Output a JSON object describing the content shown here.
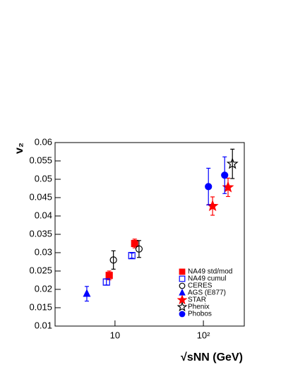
{
  "chart_data": {
    "type": "scatter",
    "x_label": "√sNN (GeV)",
    "y_label": "v₂",
    "xscale": "log",
    "xlim": [
      2.1,
      290
    ],
    "ylim": [
      0.01,
      0.06
    ],
    "xticks": [
      10,
      {
        "value": 100,
        "label": "10²"
      }
    ],
    "yticks": [
      0.01,
      0.015,
      0.02,
      0.025,
      0.03,
      0.035,
      0.04,
      0.045,
      0.05,
      0.055,
      0.06
    ],
    "series": [
      {
        "name": "NA49 std/mod",
        "color": "#ff0000",
        "marker": "square",
        "filled": true,
        "x": [
          8.6,
          16.7
        ],
        "values": [
          0.0238,
          0.0325
        ],
        "errors": [
          0.0012,
          0.0012
        ]
      },
      {
        "name": "NA49 cumul",
        "color": "#0000ff",
        "marker": "square",
        "filled": false,
        "x": [
          8.0,
          15.5
        ],
        "values": [
          0.022,
          0.0292
        ],
        "errors": [
          0.0008,
          0.0007
        ]
      },
      {
        "name": "CERES",
        "color": "#000000",
        "marker": "circle",
        "filled": false,
        "x": [
          9.6,
          18.7
        ],
        "values": [
          0.028,
          0.031
        ],
        "errors": [
          0.0025,
          0.0023
        ]
      },
      {
        "name": "AGS (E877)",
        "color": "#0000ff",
        "marker": "triangle",
        "filled": true,
        "x": [
          4.8
        ],
        "values": [
          0.0188
        ],
        "errors": [
          0.002
        ]
      },
      {
        "name": "STAR",
        "color": "#ff0000",
        "marker": "star",
        "filled": true,
        "x": [
          127,
          190
        ],
        "values": [
          0.0427,
          0.0478
        ],
        "errors": [
          0.0025,
          0.0025
        ]
      },
      {
        "name": "Phenix",
        "color": "#000000",
        "marker": "star",
        "filled": false,
        "x": [
          213
        ],
        "values": [
          0.0542
        ],
        "errors": [
          0.004
        ]
      },
      {
        "name": "Phobos",
        "color": "#0000ff",
        "marker": "circle",
        "filled": true,
        "x": [
          114,
          174
        ],
        "values": [
          0.048,
          0.0511
        ],
        "errors": [
          0.005,
          0.005
        ]
      }
    ]
  }
}
